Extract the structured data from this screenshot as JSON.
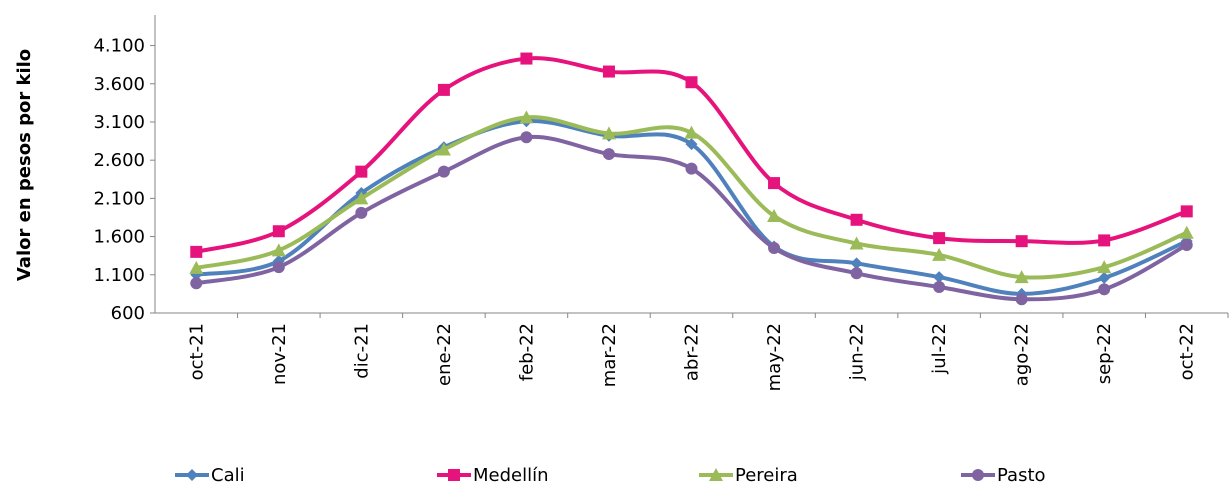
{
  "chart_data": {
    "type": "line",
    "y_label": "Valor en pesos por kilo",
    "categories": [
      "oct-21",
      "nov-21",
      "dic-21",
      "ene-22",
      "feb-22",
      "mar-22",
      "abr-22",
      "may-22",
      "jun-22",
      "jul-22",
      "ago-22",
      "sep-22",
      "oct-22"
    ],
    "series": [
      {
        "name": "Cali",
        "color": "#4f81bd",
        "marker": "diamond",
        "values": [
          1100,
          1280,
          2170,
          2770,
          3110,
          2920,
          2810,
          1470,
          1250,
          1070,
          850,
          1060,
          1540
        ]
      },
      {
        "name": "Medellín",
        "color": "#e6137d",
        "marker": "square",
        "values": [
          1400,
          1670,
          2450,
          3520,
          3930,
          3760,
          3620,
          2300,
          1820,
          1580,
          1540,
          1550,
          1930
        ]
      },
      {
        "name": "Pereira",
        "color": "#9bbb59",
        "marker": "triangle",
        "values": [
          1190,
          1420,
          2100,
          2740,
          3160,
          2950,
          2960,
          1870,
          1510,
          1360,
          1070,
          1200,
          1650
        ]
      },
      {
        "name": "Pasto",
        "color": "#8064a2",
        "marker": "circle",
        "values": [
          990,
          1200,
          1910,
          2450,
          2900,
          2680,
          2490,
          1450,
          1120,
          940,
          780,
          910,
          1490
        ]
      }
    ],
    "ylim": [
      600,
      4500
    ],
    "yticks": [
      {
        "value": 600,
        "label": "600"
      },
      {
        "value": 1100,
        "label": "1.100"
      },
      {
        "value": 1600,
        "label": "1.600"
      },
      {
        "value": 2100,
        "label": "2.100"
      },
      {
        "value": 2600,
        "label": "2.600"
      },
      {
        "value": 3100,
        "label": "3.100"
      },
      {
        "value": 3600,
        "label": "3.600"
      },
      {
        "value": 4100,
        "label": "4.100"
      }
    ],
    "legend": "bottom"
  }
}
